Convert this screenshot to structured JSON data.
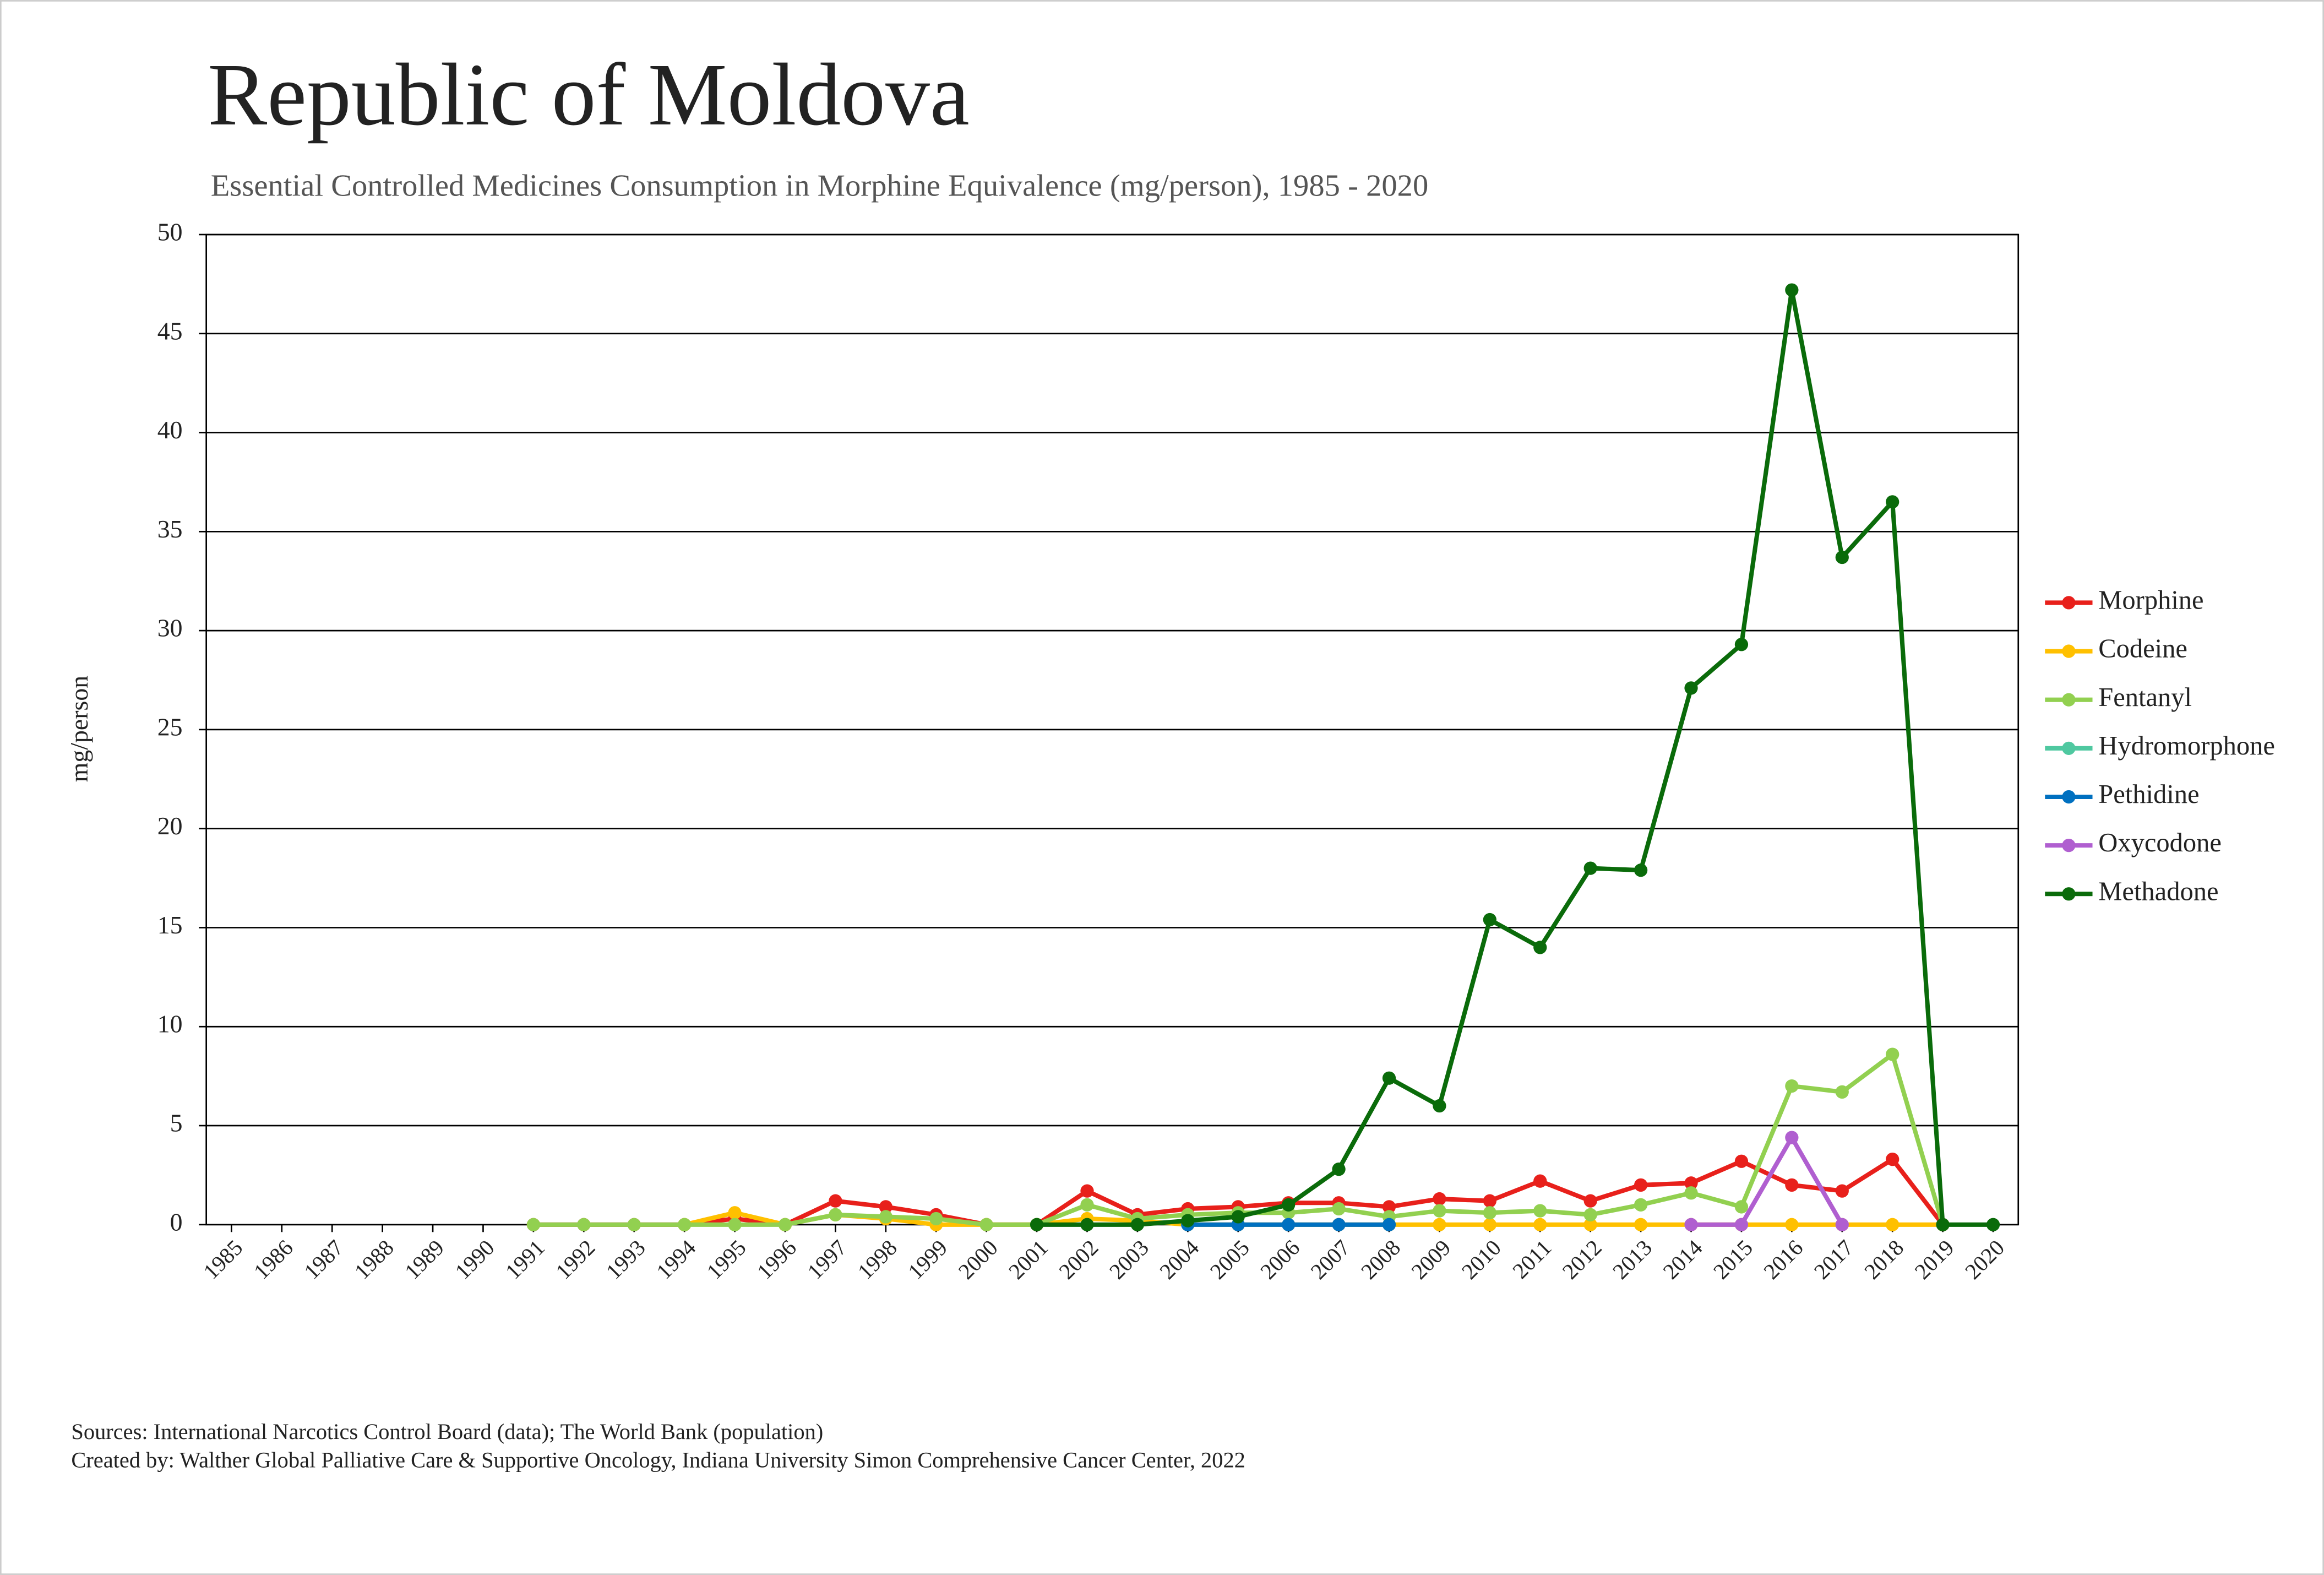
{
  "chart_data": {
    "type": "line",
    "title": "Republic of Moldova",
    "subtitle": "Essential Controlled Medicines Consumption in Morphine Equivalence (mg/person), 1985 - 2020",
    "y_label": "mg/person",
    "categories": [
      "1985",
      "1986",
      "1987",
      "1988",
      "1989",
      "1990",
      "1991",
      "1992",
      "1993",
      "1994",
      "1995",
      "1996",
      "1997",
      "1998",
      "1999",
      "2000",
      "2001",
      "2002",
      "2003",
      "2004",
      "2005",
      "2006",
      "2007",
      "2008",
      "2009",
      "2010",
      "2011",
      "2012",
      "2013",
      "2014",
      "2015",
      "2016",
      "2017",
      "2018",
      "2019",
      "2020"
    ],
    "series": [
      {
        "name": "Morphine",
        "color": "#e8201b",
        "values": [
          null,
          null,
          null,
          null,
          null,
          null,
          0,
          0,
          0,
          0,
          0.3,
          0,
          1.2,
          0.9,
          0.5,
          0,
          0,
          1.7,
          0.5,
          0.8,
          0.9,
          1.1,
          1.1,
          0.9,
          1.3,
          1.2,
          2.2,
          1.2,
          2.0,
          2.1,
          3.2,
          2.0,
          1.7,
          3.3,
          0,
          null
        ]
      },
      {
        "name": "Codeine",
        "color": "#ffc000",
        "values": [
          null,
          null,
          null,
          null,
          null,
          null,
          null,
          null,
          null,
          0,
          0.6,
          0,
          0.5,
          0.3,
          0,
          0,
          0,
          0.3,
          0.2,
          0,
          0,
          0,
          0,
          0,
          0,
          0,
          0,
          0,
          0,
          0,
          0,
          0,
          0,
          0,
          0,
          null
        ]
      },
      {
        "name": "Fentanyl",
        "color": "#92d050",
        "values": [
          null,
          null,
          null,
          null,
          null,
          null,
          0,
          0,
          0,
          0,
          0,
          0,
          0.5,
          0.4,
          0.3,
          0,
          0,
          1.0,
          0.3,
          0.5,
          0.6,
          0.6,
          0.8,
          0.4,
          0.7,
          0.6,
          0.7,
          0.5,
          1.0,
          1.6,
          0.9,
          7.0,
          6.7,
          8.6,
          0,
          null
        ]
      },
      {
        "name": "Hydromorphone",
        "color": "#4fc8a0",
        "values": [
          null,
          null,
          null,
          null,
          null,
          null,
          null,
          null,
          null,
          null,
          null,
          null,
          null,
          null,
          null,
          null,
          null,
          null,
          null,
          null,
          null,
          null,
          null,
          null,
          null,
          null,
          null,
          null,
          null,
          null,
          null,
          null,
          null,
          null,
          null,
          null
        ]
      },
      {
        "name": "Pethidine",
        "color": "#0070c0",
        "values": [
          null,
          null,
          null,
          null,
          null,
          null,
          null,
          null,
          null,
          null,
          null,
          null,
          null,
          null,
          null,
          null,
          null,
          null,
          null,
          0,
          0,
          0,
          0,
          0,
          null,
          null,
          null,
          null,
          null,
          null,
          null,
          null,
          null,
          null,
          null,
          null
        ]
      },
      {
        "name": "Oxycodone",
        "color": "#b05fd0",
        "values": [
          null,
          null,
          null,
          null,
          null,
          null,
          null,
          null,
          null,
          null,
          null,
          null,
          null,
          null,
          null,
          null,
          null,
          null,
          null,
          null,
          null,
          null,
          null,
          null,
          null,
          null,
          null,
          null,
          null,
          0,
          0,
          4.4,
          0,
          null,
          null,
          null
        ]
      },
      {
        "name": "Methadone",
        "color": "#0a6b0a",
        "values": [
          null,
          null,
          null,
          null,
          null,
          null,
          null,
          null,
          null,
          null,
          null,
          null,
          null,
          null,
          null,
          null,
          0,
          0,
          0,
          0.2,
          0.4,
          1.0,
          2.8,
          7.4,
          6.0,
          15.4,
          14.0,
          18.0,
          17.9,
          27.1,
          29.3,
          47.2,
          33.7,
          36.5,
          0,
          0
        ]
      }
    ],
    "ylim": [
      0,
      50
    ],
    "yticks": [
      0,
      5,
      10,
      15,
      20,
      25,
      30,
      35,
      40,
      45,
      50
    ],
    "grid": true,
    "legend": "right",
    "footer": [
      "Sources: International Narcotics Control Board (data); The World Bank (population)",
      "Created by: Walther Global Palliative Care & Supportive Oncology, Indiana University Simon Comprehensive Cancer Center, 2022"
    ]
  }
}
